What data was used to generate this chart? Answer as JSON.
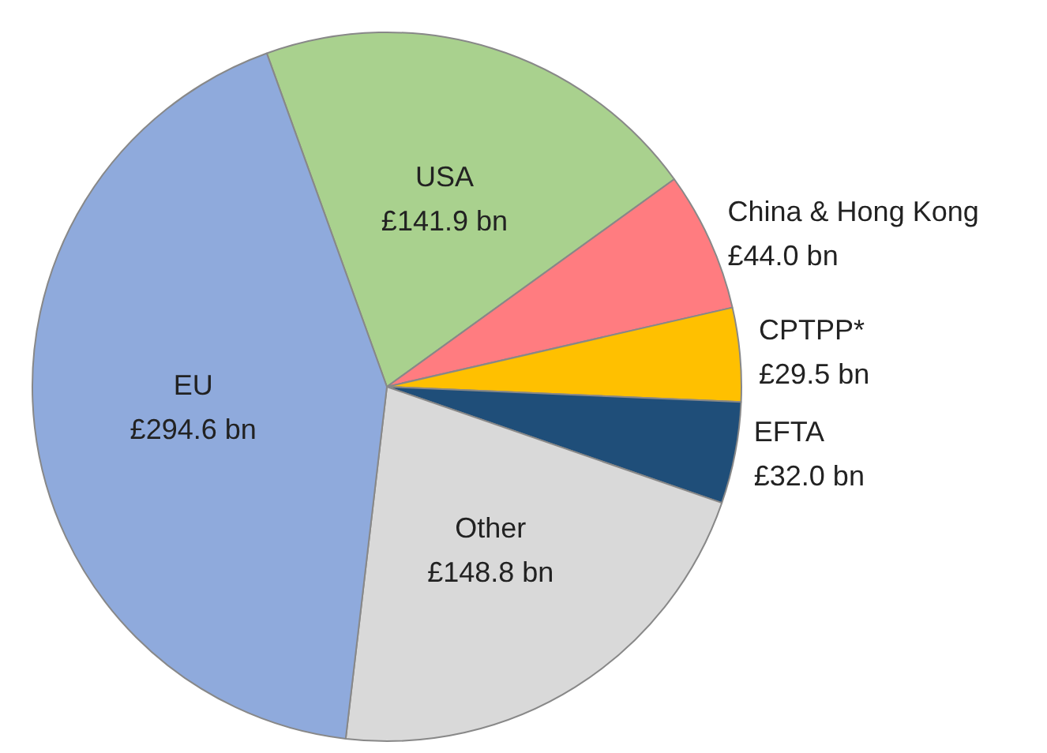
{
  "chart_data": {
    "type": "pie",
    "categories": [
      "USA",
      "China & Hong Kong",
      "CPTPP*",
      "EFTA",
      "Other",
      "EU"
    ],
    "values": [
      141.9,
      44.0,
      29.5,
      32.0,
      148.8,
      294.6
    ],
    "value_labels": [
      "£141.9 bn",
      "£44.0 bn",
      "£29.5 bn",
      "£32.0 bn",
      "£148.8 bn",
      "£294.6 bn"
    ],
    "colors": [
      "#a9d18e",
      "#ff7c80",
      "#ffc000",
      "#1f4e79",
      "#d9d9d9",
      "#8faadc"
    ],
    "legend": false
  }
}
